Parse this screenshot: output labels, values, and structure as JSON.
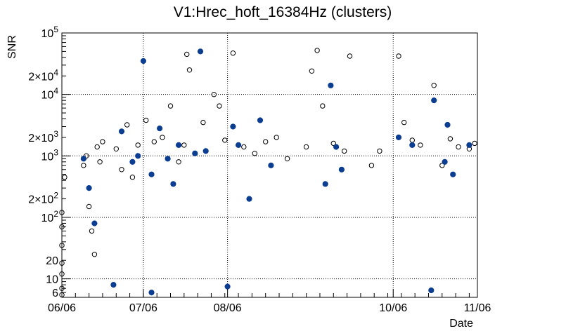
{
  "chart_data": {
    "type": "scatter",
    "title": "V1:Hrec_hoft_16384Hz (clusters)",
    "xlabel": "Date",
    "ylabel": "SNR",
    "x_scale": "time",
    "y_scale": "log",
    "xlim": [
      "2016-06-06",
      "2016-11-06"
    ],
    "ylim": [
      5,
      100000
    ],
    "grid": true,
    "x_ticks": [
      {
        "value": "2016-06-06",
        "label": "06/06"
      },
      {
        "value": "2016-07-06",
        "label": "07/06"
      },
      {
        "value": "2016-08-06",
        "label": "08/06"
      },
      {
        "value": "2016-10-06",
        "label": "10/06"
      },
      {
        "value": "2016-11-06",
        "label": "11/06"
      }
    ],
    "y_ticks": [
      {
        "value": 6,
        "label": "6"
      },
      {
        "value": 10,
        "label": "10"
      },
      {
        "value": 20,
        "label": "20"
      },
      {
        "value": 100,
        "label": "10^2"
      },
      {
        "value": 200,
        "label": "2×10^2"
      },
      {
        "value": 1000,
        "label": "10^3"
      },
      {
        "value": 2000,
        "label": "2×10^3"
      },
      {
        "value": 10000,
        "label": "10^4"
      },
      {
        "value": 20000,
        "label": "2×10^4"
      },
      {
        "value": 100000,
        "label": "10^5"
      }
    ],
    "series": [
      {
        "marker": "open-circle",
        "color": "#000000",
        "points": [
          [
            "2016-06-06",
            5.5
          ],
          [
            "2016-06-06",
            7
          ],
          [
            "2016-06-06",
            12
          ],
          [
            "2016-06-06",
            18
          ],
          [
            "2016-06-06",
            35
          ],
          [
            "2016-06-06",
            70
          ],
          [
            "2016-06-06",
            120
          ],
          [
            "2016-06-07",
            450
          ],
          [
            "2016-06-14",
            700
          ],
          [
            "2016-06-15",
            1000
          ],
          [
            "2016-06-16",
            150
          ],
          [
            "2016-06-17",
            60
          ],
          [
            "2016-06-18",
            25
          ],
          [
            "2016-06-19",
            1400
          ],
          [
            "2016-06-20",
            800
          ],
          [
            "2016-06-21",
            1700
          ],
          [
            "2016-06-26",
            1300
          ],
          [
            "2016-06-28",
            600
          ],
          [
            "2016-06-30",
            3200
          ],
          [
            "2016-07-02",
            450
          ],
          [
            "2016-07-04",
            1500
          ],
          [
            "2016-07-07",
            3800
          ],
          [
            "2016-07-10",
            1700
          ],
          [
            "2016-07-13",
            2000
          ],
          [
            "2016-07-16",
            6500
          ],
          [
            "2016-07-19",
            800
          ],
          [
            "2016-07-21",
            1500
          ],
          [
            "2016-07-22",
            45000
          ],
          [
            "2016-07-23",
            25000
          ],
          [
            "2016-07-28",
            3500
          ],
          [
            "2016-08-01",
            10000
          ],
          [
            "2016-08-03",
            6500
          ],
          [
            "2016-08-05",
            1800
          ],
          [
            "2016-08-08",
            47000
          ],
          [
            "2016-08-12",
            1400
          ],
          [
            "2016-08-16",
            1100
          ],
          [
            "2016-08-20",
            1700
          ],
          [
            "2016-08-24",
            2000
          ],
          [
            "2016-08-28",
            900
          ],
          [
            "2016-09-04",
            1400
          ],
          [
            "2016-09-06",
            24000
          ],
          [
            "2016-09-08",
            52000
          ],
          [
            "2016-09-10",
            6500
          ],
          [
            "2016-09-14",
            1600
          ],
          [
            "2016-09-18",
            1200
          ],
          [
            "2016-09-20",
            42000
          ],
          [
            "2016-09-28",
            700
          ],
          [
            "2016-10-01",
            1200
          ],
          [
            "2016-10-08",
            42000
          ],
          [
            "2016-10-10",
            3500
          ],
          [
            "2016-10-13",
            1800
          ],
          [
            "2016-10-16",
            1500
          ],
          [
            "2016-10-21",
            14000
          ],
          [
            "2016-10-24",
            700
          ],
          [
            "2016-10-27",
            1900
          ],
          [
            "2016-10-30",
            1400
          ],
          [
            "2016-11-03",
            1300
          ],
          [
            "2016-11-05",
            1600
          ]
        ]
      },
      {
        "marker": "filled-circle",
        "color": "#0b3d91",
        "points": [
          [
            "2016-06-14",
            900
          ],
          [
            "2016-06-16",
            300
          ],
          [
            "2016-06-18",
            80
          ],
          [
            "2016-06-28",
            2500
          ],
          [
            "2016-07-02",
            800
          ],
          [
            "2016-07-04",
            1000
          ],
          [
            "2016-07-06",
            35000
          ],
          [
            "2016-07-09",
            500
          ],
          [
            "2016-07-12",
            2800
          ],
          [
            "2016-07-15",
            900
          ],
          [
            "2016-07-17",
            350
          ],
          [
            "2016-07-19",
            1500
          ],
          [
            "2016-07-25",
            1100
          ],
          [
            "2016-07-27",
            50000
          ],
          [
            "2016-07-29",
            1200
          ],
          [
            "2016-08-08",
            3000
          ],
          [
            "2016-08-10",
            1500
          ],
          [
            "2016-08-14",
            200
          ],
          [
            "2016-08-18",
            3800
          ],
          [
            "2016-08-22",
            700
          ],
          [
            "2016-09-11",
            350
          ],
          [
            "2016-09-13",
            14000
          ],
          [
            "2016-09-15",
            1400
          ],
          [
            "2016-09-17",
            600
          ],
          [
            "2016-10-08",
            2000
          ],
          [
            "2016-10-13",
            1500
          ],
          [
            "2016-10-21",
            8000
          ],
          [
            "2016-10-25",
            800
          ],
          [
            "2016-10-26",
            3200
          ],
          [
            "2016-10-28",
            500
          ],
          [
            "2016-11-03",
            1500
          ],
          [
            "2016-06-25",
            8
          ],
          [
            "2016-07-09",
            6
          ],
          [
            "2016-08-06",
            7.5
          ],
          [
            "2016-10-20",
            6.5
          ]
        ]
      }
    ]
  }
}
